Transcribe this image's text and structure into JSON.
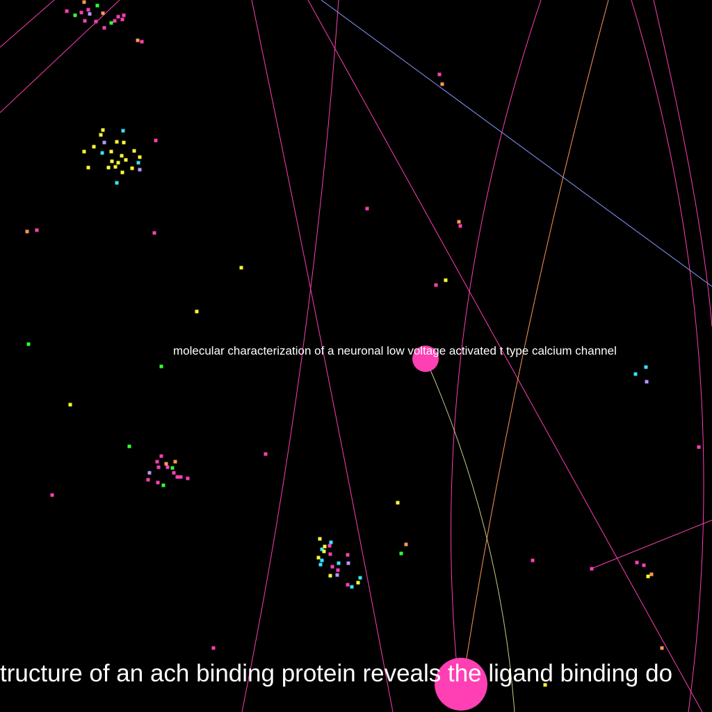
{
  "background_color": "#000000",
  "palette": {
    "pink": "#ff3fb4",
    "yellow": "#ffff33",
    "cyan": "#33e6ff",
    "green": "#33ff33",
    "orange": "#ff9955",
    "lavender": "#b399ff",
    "blue": "#8899ff",
    "khaki": "#cccc88"
  },
  "labels": {
    "focus_node": "molecular characterization of a neuronal low voltage activated t type calcium channel",
    "large_node": "tructure of an ach binding protein reveals the ligand binding do"
  }
}
